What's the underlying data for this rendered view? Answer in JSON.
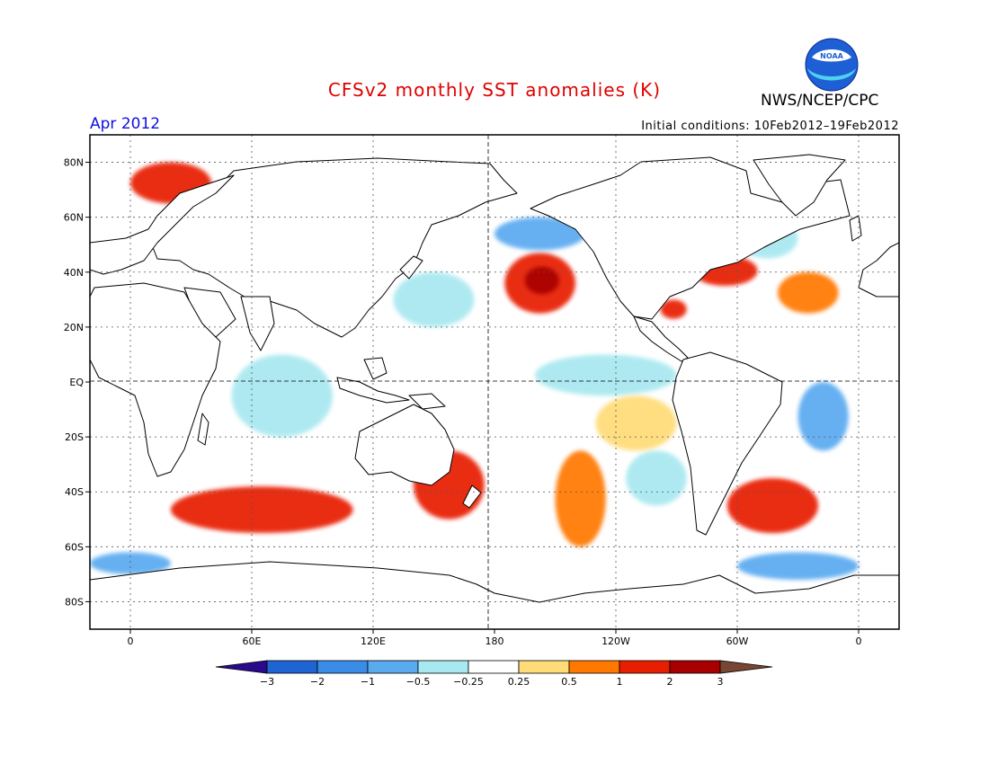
{
  "title": "CFSv2 monthly SST anomalies (K)",
  "month_label": "Apr 2012",
  "initial_conditions": "Initial conditions: 10Feb2012–19Feb2012",
  "organization": "NWS/NCEP/CPC",
  "logo": {
    "icon": "noaa-logo-icon",
    "text": "NOAA"
  },
  "map": {
    "projection": "cylindrical-equidistant",
    "lon_range": [
      -20,
      380
    ],
    "lat_range": [
      -90,
      90
    ],
    "lat_ticks": [
      {
        "value": 80,
        "label": "80N"
      },
      {
        "value": 60,
        "label": "60N"
      },
      {
        "value": 40,
        "label": "40N"
      },
      {
        "value": 20,
        "label": "20N"
      },
      {
        "value": 0,
        "label": "EQ"
      },
      {
        "value": -20,
        "label": "20S"
      },
      {
        "value": -40,
        "label": "40S"
      },
      {
        "value": -60,
        "label": "60S"
      },
      {
        "value": -80,
        "label": "80S"
      }
    ],
    "lon_ticks": [
      {
        "value": 0,
        "label": "0"
      },
      {
        "value": 60,
        "label": "60E"
      },
      {
        "value": 120,
        "label": "120E"
      },
      {
        "value": 180,
        "label": "180"
      },
      {
        "value": 240,
        "label": "120W"
      },
      {
        "value": 300,
        "label": "60W"
      },
      {
        "value": 360,
        "label": "0"
      }
    ],
    "grid": "dotted"
  },
  "colorbar": {
    "labels": [
      "−3",
      "−2",
      "−1",
      "−0.5",
      "−0.25",
      "0.25",
      "0.5",
      "1",
      "2",
      "3"
    ],
    "colors": [
      "#2a0a8c",
      "#1e64d2",
      "#3a8ce8",
      "#5aaaf0",
      "#a8e8f0",
      "#ffffff",
      "#ffdc78",
      "#ff7800",
      "#e81e00",
      "#a80000",
      "#784632"
    ]
  },
  "anomaly_regions": [
    {
      "name": "north-pacific-warm",
      "lon": [
        185,
        220
      ],
      "lat": [
        25,
        47
      ],
      "value": 1.5
    },
    {
      "name": "north-pacific-core",
      "lon": [
        195,
        212
      ],
      "lat": [
        32,
        42
      ],
      "value": 2.0
    },
    {
      "name": "bering-cold",
      "lon": [
        180,
        225
      ],
      "lat": [
        48,
        60
      ],
      "value": -1.0
    },
    {
      "name": "gulf-stream-warm",
      "lon": [
        278,
        310
      ],
      "lat": [
        35,
        46
      ],
      "value": 1.5
    },
    {
      "name": "gulf-of-mexico-warm",
      "lon": [
        262,
        275
      ],
      "lat": [
        23,
        30
      ],
      "value": 1.5
    },
    {
      "name": "south-atlantic-cold",
      "lon": [
        330,
        355
      ],
      "lat": [
        -25,
        0
      ],
      "value": -0.6
    },
    {
      "name": "southern-ocean-warm-indian",
      "lon": [
        20,
        110
      ],
      "lat": [
        -55,
        -38
      ],
      "value": 1.2
    },
    {
      "name": "southern-ocean-warm-pacific",
      "lon": [
        210,
        235
      ],
      "lat": [
        -60,
        -25
      ],
      "value": 0.9
    },
    {
      "name": "tasman-warm",
      "lon": [
        140,
        175
      ],
      "lat": [
        -50,
        -25
      ],
      "value": 1.0
    },
    {
      "name": "south-atlantic-warm",
      "lon": [
        295,
        340
      ],
      "lat": [
        -55,
        -35
      ],
      "value": 1.3
    },
    {
      "name": "southeast-pacific-cold",
      "lon": [
        245,
        275
      ],
      "lat": [
        -45,
        -25
      ],
      "value": -0.5
    },
    {
      "name": "equatorial-east-pacific-cool",
      "lon": [
        200,
        270
      ],
      "lat": [
        -5,
        10
      ],
      "value": -0.3
    },
    {
      "name": "antarctic-cold-atlantic",
      "lon": [
        300,
        360
      ],
      "lat": [
        -72,
        -62
      ],
      "value": -0.6
    },
    {
      "name": "antarctic-cold-east",
      "lon": [
        -20,
        20
      ],
      "lat": [
        -70,
        -62
      ],
      "value": -0.6
    },
    {
      "name": "indian-ocean-cool",
      "lon": [
        50,
        100
      ],
      "lat": [
        -20,
        10
      ],
      "value": -0.3
    },
    {
      "name": "southeast-pacific-warm",
      "lon": [
        230,
        270
      ],
      "lat": [
        -25,
        -5
      ],
      "value": 0.4
    },
    {
      "name": "norwegian-sea-warm",
      "lon": [
        0,
        40
      ],
      "lat": [
        65,
        80
      ],
      "value": 1.5
    },
    {
      "name": "labrador-cold",
      "lon": [
        300,
        330
      ],
      "lat": [
        45,
        60
      ],
      "value": -0.5
    },
    {
      "name": "north-atlantic-warm",
      "lon": [
        320,
        350
      ],
      "lat": [
        25,
        40
      ],
      "value": 0.8
    },
    {
      "name": "kuroshio-mixed",
      "lon": [
        130,
        170
      ],
      "lat": [
        20,
        40
      ],
      "value": -0.4
    }
  ]
}
